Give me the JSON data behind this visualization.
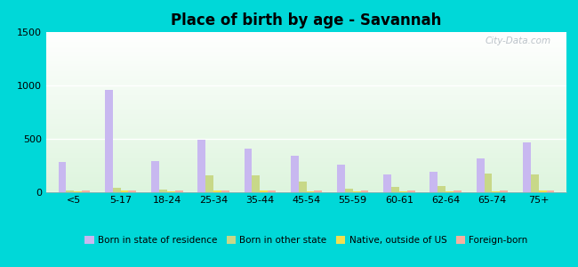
{
  "title": "Place of birth by age - Savannah",
  "categories": [
    "<5",
    "5-17",
    "18-24",
    "25-34",
    "35-44",
    "45-54",
    "55-59",
    "60-61",
    "62-64",
    "65-74",
    "75+"
  ],
  "series": {
    "Born in state of residence": [
      280,
      960,
      295,
      495,
      405,
      340,
      255,
      165,
      190,
      320,
      465
    ],
    "Born in other state": [
      20,
      40,
      25,
      155,
      155,
      100,
      30,
      50,
      55,
      175,
      165
    ],
    "Native, outside of US": [
      10,
      15,
      10,
      20,
      15,
      10,
      10,
      10,
      10,
      10,
      15
    ],
    "Foreign-born": [
      15,
      20,
      15,
      20,
      20,
      15,
      15,
      15,
      15,
      15,
      20
    ]
  },
  "colors": {
    "Born in state of residence": "#c8b8f0",
    "Born in other state": "#c8d888",
    "Native, outside of US": "#f0e050",
    "Foreign-born": "#f5b0a0"
  },
  "ylim": [
    0,
    1500
  ],
  "yticks": [
    0,
    500,
    1000,
    1500
  ],
  "background_color": "#00d8d8",
  "watermark": "City-Data.com"
}
